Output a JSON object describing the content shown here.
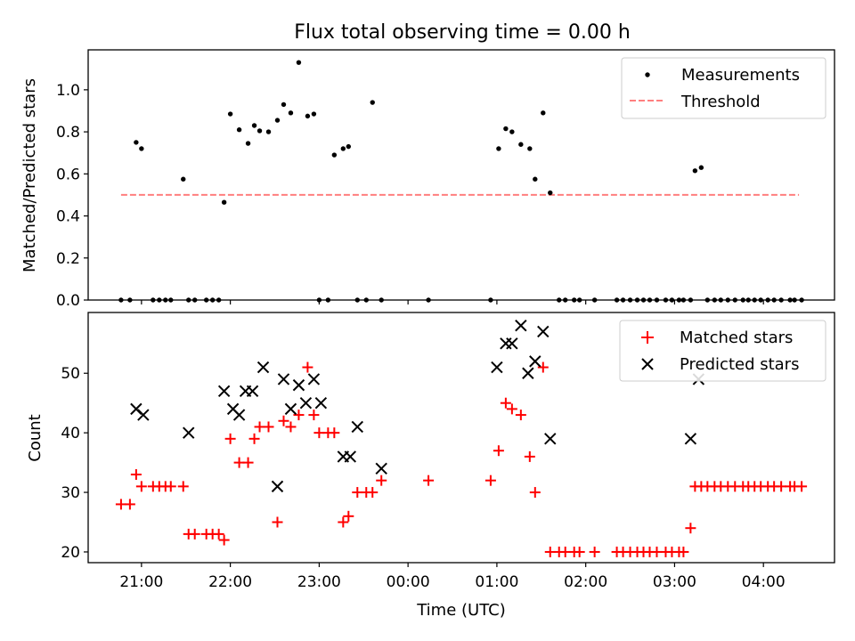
{
  "title": "Flux total observing time = 0.00 h",
  "chart_data": [
    {
      "type": "scatter",
      "panel": "top",
      "xlabel": "",
      "ylabel": "Matched/Predicted stars",
      "xlim": [
        20.4,
        28.8
      ],
      "ylim": [
        0.0,
        1.19
      ],
      "yticks": [
        0.0,
        0.2,
        0.4,
        0.6,
        0.8,
        1.0
      ],
      "ytick_labels": [
        "0.0",
        "0.2",
        "0.4",
        "0.6",
        "0.8",
        "1.0"
      ],
      "legend_position": "top-right",
      "series": [
        {
          "name": "Measurements",
          "marker": "dot",
          "color": "#000000",
          "x": [
            20.77,
            20.87,
            20.94,
            21.0,
            21.13,
            21.2,
            21.27,
            21.33,
            21.47,
            21.53,
            21.6,
            21.73,
            21.8,
            21.87,
            21.93,
            22.0,
            22.1,
            22.2,
            22.27,
            22.33,
            22.43,
            22.53,
            22.6,
            22.68,
            22.77,
            22.87,
            22.94,
            23.0,
            23.1,
            23.17,
            23.27,
            23.33,
            23.43,
            23.53,
            23.6,
            23.7,
            24.23,
            24.93,
            25.02,
            25.1,
            25.17,
            25.27,
            25.37,
            25.43,
            25.52,
            25.6,
            25.7,
            25.77,
            25.87,
            25.93,
            26.1,
            26.35,
            26.42,
            26.5,
            26.58,
            26.65,
            26.72,
            26.8,
            26.9,
            26.97,
            27.05,
            27.1,
            27.18,
            27.23,
            27.3,
            27.37,
            27.45,
            27.52,
            27.6,
            27.68,
            27.77,
            27.83,
            27.9,
            27.97,
            28.05,
            28.12,
            28.2,
            28.3,
            28.35,
            28.43
          ],
          "y": [
            0.0,
            0.0,
            0.75,
            0.72,
            0.0,
            0.0,
            0.0,
            0.0,
            0.575,
            0.0,
            0.0,
            0.0,
            0.0,
            0.0,
            0.465,
            0.885,
            0.81,
            0.745,
            0.83,
            0.805,
            0.8,
            0.855,
            0.93,
            0.89,
            1.13,
            0.875,
            0.885,
            0.0,
            0.0,
            0.69,
            0.72,
            0.73,
            0.0,
            0.0,
            0.94,
            0.0,
            0.0,
            0.0,
            0.72,
            0.815,
            0.8,
            0.74,
            0.72,
            0.575,
            0.89,
            0.51,
            0.0,
            0.0,
            0.0,
            0.0,
            0.0,
            0.0,
            0.0,
            0.0,
            0.0,
            0.0,
            0.0,
            0.0,
            0.0,
            0.0,
            0.0,
            0.0,
            0.0,
            0.615,
            0.63,
            0.0,
            0.0,
            0.0,
            0.0,
            0.0,
            0.0,
            0.0,
            0.0,
            0.0,
            0.0,
            0.0,
            0.0,
            0.0,
            0.0,
            0.0
          ]
        },
        {
          "name": "Threshold",
          "marker": "dashed-line",
          "color": "#ff7f7f",
          "x": [
            20.77,
            28.4
          ],
          "y": [
            0.5,
            0.5
          ]
        }
      ]
    },
    {
      "type": "scatter",
      "panel": "bottom",
      "xlabel": "Time (UTC)",
      "ylabel": "Count",
      "xlim": [
        20.4,
        28.8
      ],
      "ylim": [
        18.2,
        60.2
      ],
      "yticks": [
        20,
        30,
        40,
        50
      ],
      "ytick_labels": [
        "20",
        "30",
        "40",
        "50"
      ],
      "xticks": [
        21,
        22,
        23,
        24,
        25,
        26,
        27,
        28
      ],
      "xtick_labels": [
        "21:00",
        "22:00",
        "23:00",
        "00:00",
        "01:00",
        "02:00",
        "03:00",
        "04:00"
      ],
      "legend_position": "top-right",
      "series": [
        {
          "name": "Matched stars",
          "marker": "plus",
          "color": "#ff0000",
          "x": [
            20.77,
            20.87,
            20.94,
            21.0,
            21.13,
            21.2,
            21.27,
            21.33,
            21.47,
            21.53,
            21.6,
            21.73,
            21.8,
            21.87,
            21.93,
            22.0,
            22.1,
            22.2,
            22.27,
            22.33,
            22.43,
            22.53,
            22.6,
            22.68,
            22.77,
            22.87,
            22.94,
            23.0,
            23.1,
            23.17,
            23.27,
            23.33,
            23.43,
            23.53,
            23.6,
            23.7,
            24.23,
            24.93,
            25.02,
            25.1,
            25.17,
            25.27,
            25.37,
            25.43,
            25.52,
            25.6,
            25.7,
            25.77,
            25.87,
            25.93,
            26.1,
            26.35,
            26.42,
            26.5,
            26.58,
            26.65,
            26.72,
            26.8,
            26.9,
            26.97,
            27.05,
            27.1,
            27.18,
            27.23,
            27.3,
            27.37,
            27.45,
            27.52,
            27.6,
            27.68,
            27.77,
            27.83,
            27.9,
            27.97,
            28.05,
            28.12,
            28.2,
            28.3,
            28.35,
            28.43
          ],
          "y": [
            28,
            28,
            33,
            31,
            31,
            31,
            31,
            31,
            31,
            23,
            23,
            23,
            23,
            23,
            22,
            39,
            35,
            35,
            39,
            41,
            41,
            25,
            42,
            41,
            43,
            51,
            43,
            40,
            40,
            40,
            25,
            26,
            30,
            30,
            30,
            32,
            32,
            32,
            37,
            45,
            44,
            43,
            36,
            30,
            51,
            20,
            20,
            20,
            20,
            20,
            20,
            20,
            20,
            20,
            20,
            20,
            20,
            20,
            20,
            20,
            20,
            20,
            24,
            31,
            31,
            31,
            31,
            31,
            31,
            31,
            31,
            31,
            31,
            31,
            31,
            31,
            31,
            31,
            31,
            31
          ]
        },
        {
          "name": "Predicted stars",
          "marker": "x",
          "color": "#000000",
          "x": [
            20.94,
            21.02,
            21.53,
            21.93,
            22.03,
            22.1,
            22.17,
            22.25,
            22.37,
            22.53,
            22.6,
            22.68,
            22.77,
            22.85,
            22.94,
            23.02,
            23.27,
            23.35,
            23.43,
            23.7,
            25.0,
            25.1,
            25.17,
            25.27,
            25.35,
            25.43,
            25.52,
            25.6,
            27.18,
            27.27
          ],
          "y": [
            44,
            43,
            40,
            47,
            44,
            43,
            47,
            47,
            51,
            31,
            49,
            44,
            48,
            45,
            49,
            45,
            36,
            36,
            41,
            34,
            51,
            55,
            55,
            58,
            50,
            52,
            57,
            39,
            39,
            49
          ]
        }
      ]
    }
  ]
}
